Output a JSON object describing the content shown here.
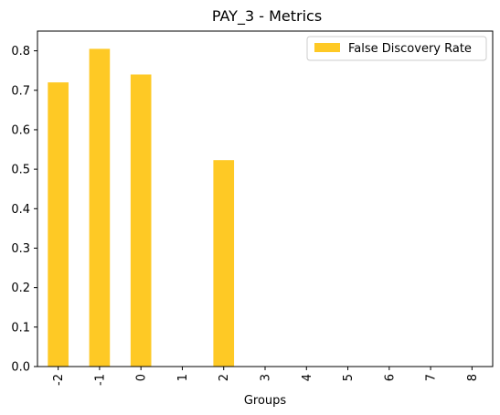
{
  "chart_data": {
    "type": "bar",
    "title": "PAY_3 - Metrics",
    "xlabel": "Groups",
    "ylabel": "",
    "categories": [
      "-2",
      "-1",
      "0",
      "1",
      "2",
      "3",
      "4",
      "5",
      "6",
      "7",
      "8"
    ],
    "series": [
      {
        "name": "False Discovery Rate",
        "values": [
          0.72,
          0.805,
          0.74,
          0,
          0.523,
          0,
          0,
          0,
          0,
          0,
          0
        ],
        "color": "#fec925"
      }
    ],
    "ylim": [
      0,
      0.85
    ],
    "yticks": [
      0.0,
      0.1,
      0.2,
      0.3,
      0.4,
      0.5,
      0.6,
      0.7,
      0.8
    ],
    "ytick_labels": [
      "0.0",
      "0.1",
      "0.2",
      "0.3",
      "0.4",
      "0.5",
      "0.6",
      "0.7",
      "0.8"
    ],
    "grid": false,
    "legend_position": "top-right"
  }
}
